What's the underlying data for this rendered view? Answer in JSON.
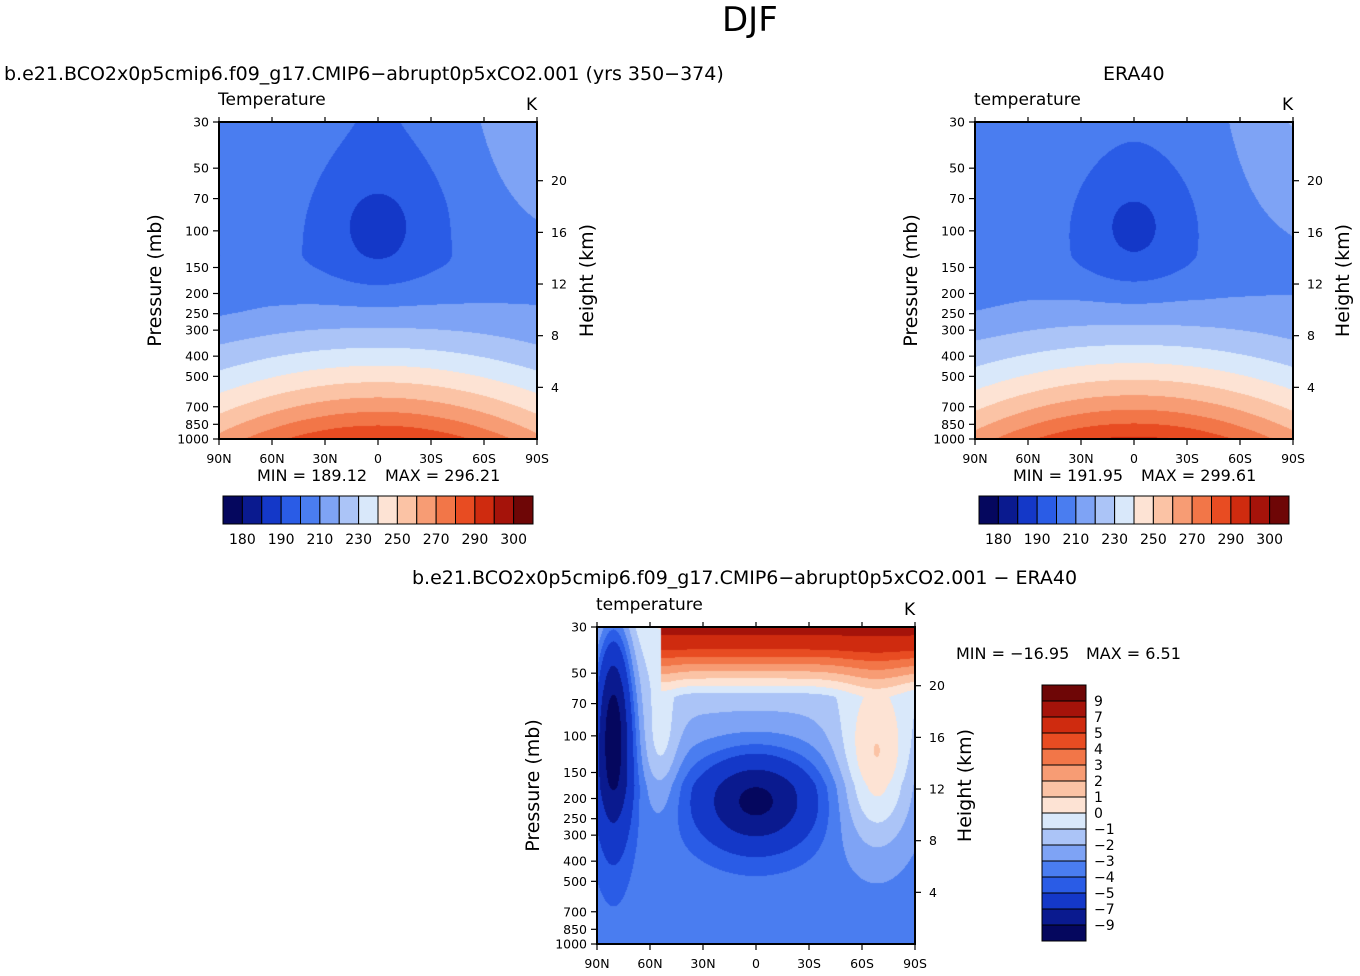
{
  "figure": {
    "title": "DJF"
  },
  "panels": [
    {
      "title": "b.e21.BCO2x0p5cmip6.f09_g17.CMIP6−abrupt0p5xCO2.001 (yrs 350−374)",
      "left_label": "Temperature",
      "right_label": "K",
      "min_label": "MIN = 189.12",
      "max_label": "MAX = 296.21"
    },
    {
      "title": "ERA40",
      "left_label": "temperature",
      "right_label": "K",
      "min_label": "MIN = 191.95",
      "max_label": "MAX = 299.61"
    },
    {
      "title": "b.e21.BCO2x0p5cmip6.f09_g17.CMIP6−abrupt0p5xCO2.001 − ERA40",
      "left_label": "temperature",
      "right_label": "K",
      "min_label": "MIN = −16.95",
      "max_label": "MAX = 6.51"
    }
  ],
  "chart_data": [
    {
      "type": "heatmap",
      "title": "Temperature",
      "units": "K",
      "ylabel": "Pressure (mb)",
      "ylabel_right": "Height (km)",
      "x_ticks": [
        "90N",
        "60N",
        "30N",
        "0",
        "30S",
        "60S",
        "90S"
      ],
      "y_ticks": [
        "30",
        "50",
        "70",
        "100",
        "150",
        "200",
        "250",
        "300",
        "400",
        "500",
        "700",
        "850",
        "1000"
      ],
      "y_ticks_right": [
        "20",
        "16",
        "12",
        "8",
        "4"
      ],
      "y_scale": "log",
      "y_inverted": true,
      "min": 189.12,
      "max": 296.21,
      "colorbar_ticks": [
        "180",
        "190",
        "210",
        "230",
        "250",
        "270",
        "290",
        "300"
      ]
    },
    {
      "type": "heatmap",
      "title": "temperature",
      "units": "K",
      "ylabel": "Pressure (mb)",
      "ylabel_right": "Height (km)",
      "x_ticks": [
        "90N",
        "60N",
        "30N",
        "0",
        "30S",
        "60S",
        "90S"
      ],
      "y_ticks": [
        "30",
        "50",
        "70",
        "100",
        "150",
        "200",
        "250",
        "300",
        "400",
        "500",
        "700",
        "850",
        "1000"
      ],
      "y_ticks_right": [
        "20",
        "16",
        "12",
        "8",
        "4"
      ],
      "y_scale": "log",
      "y_inverted": true,
      "min": 191.95,
      "max": 299.61,
      "colorbar_ticks": [
        "180",
        "190",
        "210",
        "230",
        "250",
        "270",
        "290",
        "300"
      ]
    },
    {
      "type": "heatmap",
      "title": "temperature",
      "units": "K",
      "ylabel": "Pressure (mb)",
      "ylabel_right": "Height (km)",
      "x_ticks": [
        "90N",
        "60N",
        "30N",
        "0",
        "30S",
        "60S",
        "90S"
      ],
      "y_ticks": [
        "30",
        "50",
        "70",
        "100",
        "150",
        "200",
        "250",
        "300",
        "400",
        "500",
        "700",
        "850",
        "1000"
      ],
      "y_ticks_right": [
        "20",
        "16",
        "12",
        "8",
        "4"
      ],
      "y_scale": "log",
      "y_inverted": true,
      "min": -16.95,
      "max": 6.51,
      "colorbar_ticks": [
        "9",
        "7",
        "5",
        "4",
        "3",
        "2",
        "1",
        "0",
        "−1",
        "−2",
        "−3",
        "−4",
        "−5",
        "−7",
        "−9"
      ]
    }
  ],
  "colors": {
    "abs_scale": [
      "#05075e",
      "#0a1a8f",
      "#1438c8",
      "#2a5ce6",
      "#4a7df0",
      "#7ea3f5",
      "#abc4f7",
      "#d9e8fa",
      "#fde3d4",
      "#fbc3a5",
      "#f79c74",
      "#f27648",
      "#e84c22",
      "#cf2b0f",
      "#a5130a",
      "#6e0606"
    ],
    "diff_scale": [
      "#6e0606",
      "#a5130a",
      "#cf2b0f",
      "#e84c22",
      "#f27648",
      "#f79c74",
      "#fbc3a5",
      "#fde3d4",
      "#d9e8fa",
      "#abc4f7",
      "#7ea3f5",
      "#4a7df0",
      "#2a5ce6",
      "#1438c8",
      "#0a1a8f",
      "#05075e"
    ]
  }
}
